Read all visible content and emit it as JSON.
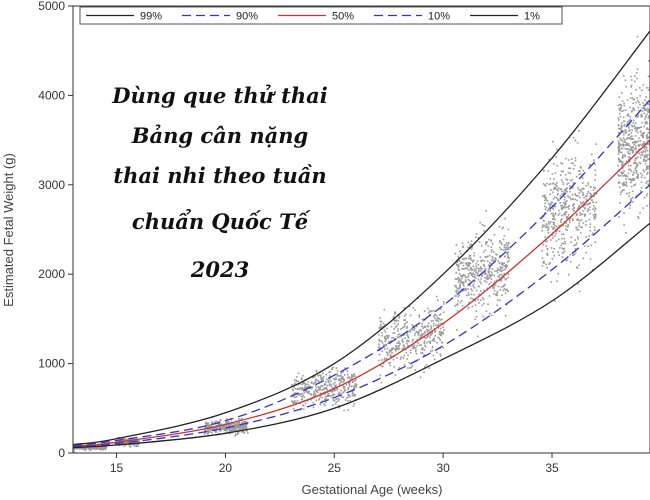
{
  "chart_data": {
    "type": "line",
    "x_title": "Gestational Age (weeks)",
    "y_title": "Estimated Fetal Weight (g)",
    "xlim": [
      13,
      39.5
    ],
    "ylim": [
      0,
      5000
    ],
    "x_ticks": [
      15,
      20,
      25,
      30,
      35
    ],
    "y_ticks": [
      0,
      1000,
      2000,
      3000,
      4000,
      5000
    ],
    "grid": false,
    "legend_position": "top",
    "overlay_text": [
      "Dùng que thử thai",
      "Bảng cân nặng",
      "thai nhi theo tuần",
      "chuẩn Quốc Tế",
      "2023"
    ],
    "x": [
      13,
      15,
      20,
      25,
      30,
      35,
      39.5
    ],
    "series": [
      {
        "name": "99%",
        "color": "#222222",
        "style": "solid",
        "values": [
          95,
          160,
          450,
          1000,
          2000,
          3300,
          4720
        ]
      },
      {
        "name": "90%",
        "color": "#3333cc",
        "style": "dashed",
        "values": [
          85,
          140,
          360,
          870,
          1650,
          2750,
          3950
        ]
      },
      {
        "name": "50%",
        "color": "#cc3333",
        "style": "solid",
        "values": [
          75,
          120,
          320,
          720,
          1450,
          2450,
          3500
        ]
      },
      {
        "name": "10%",
        "color": "#3333cc",
        "style": "dashed",
        "values": [
          70,
          105,
          280,
          620,
          1200,
          2050,
          3000
        ]
      },
      {
        "name": "1%",
        "color": "#222222",
        "style": "solid",
        "values": [
          60,
          90,
          220,
          500,
          1050,
          1700,
          2570
        ]
      }
    ],
    "scatter_clusters": [
      {
        "x_range": [
          13,
          14.5
        ],
        "y_center": 75,
        "y_spread": 30
      },
      {
        "x_range": [
          15,
          16
        ],
        "y_center": 130,
        "y_spread": 40
      },
      {
        "x_range": [
          19,
          21
        ],
        "y_center": 300,
        "y_spread": 80
      },
      {
        "x_range": [
          23,
          26
        ],
        "y_center": 720,
        "y_spread": 220
      },
      {
        "x_range": [
          27,
          30
        ],
        "y_center": 1300,
        "y_spread": 350
      },
      {
        "x_range": [
          30.5,
          33
        ],
        "y_center": 2000,
        "y_spread": 500
      },
      {
        "x_range": [
          34.5,
          37
        ],
        "y_center": 2750,
        "y_spread": 650
      },
      {
        "x_range": [
          38,
          39.5
        ],
        "y_center": 3450,
        "y_spread": 750
      }
    ],
    "scatter_color": "#9a9a9a"
  }
}
